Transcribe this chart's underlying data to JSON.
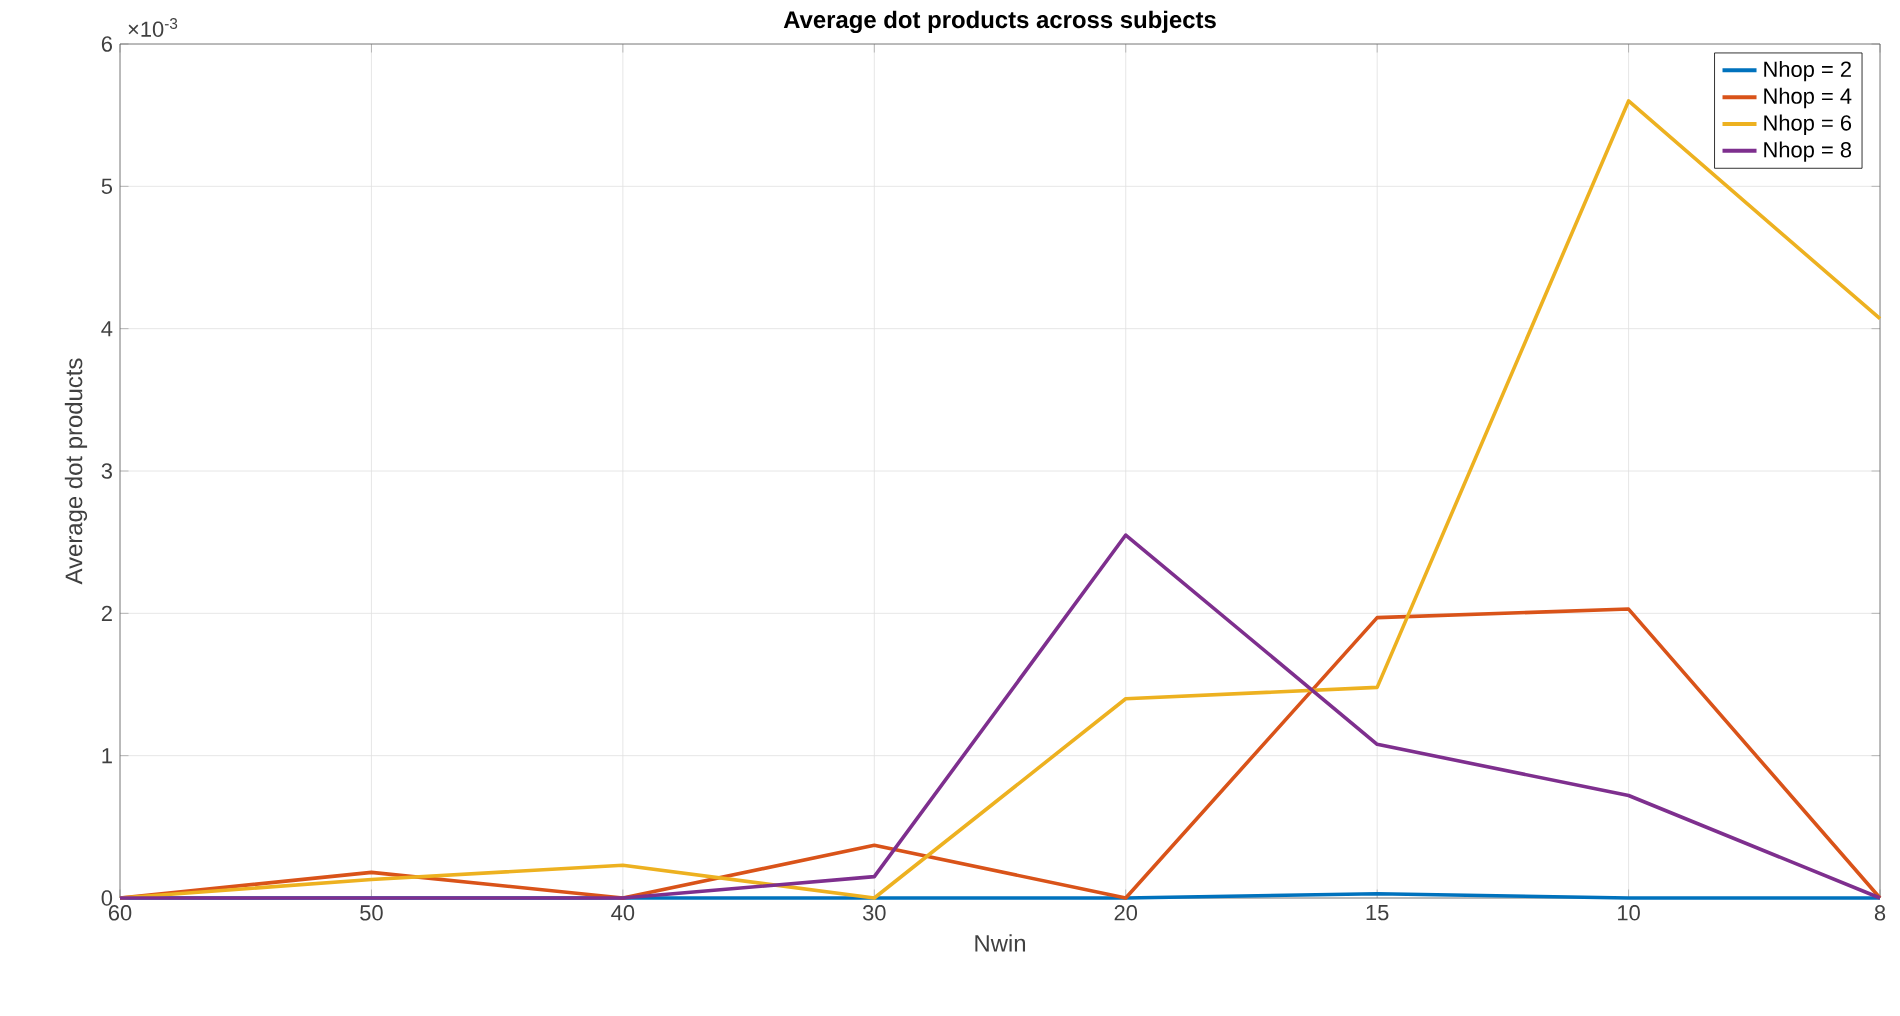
{
  "chart_data": {
    "type": "line",
    "title": "Average dot products across subjects",
    "xlabel": "Nwin",
    "ylabel": "Average dot products",
    "categories": [
      "60",
      "50",
      "40",
      "30",
      "20",
      "15",
      "10",
      "8"
    ],
    "series": [
      {
        "name": "Nhop = 2",
        "color": "#0072bd",
        "values": [
          0,
          0,
          0,
          0,
          0,
          0.03,
          0,
          0
        ]
      },
      {
        "name": "Nhop = 4",
        "color": "#d95319",
        "values": [
          0,
          0.18,
          0,
          0.37,
          0,
          1.97,
          2.03,
          0
        ]
      },
      {
        "name": "Nhop = 6",
        "color": "#edb120",
        "values": [
          0,
          0.13,
          0.23,
          0,
          1.4,
          1.48,
          5.6,
          4.07
        ]
      },
      {
        "name": "Nhop = 8",
        "color": "#7e2f8e",
        "values": [
          0,
          0,
          0,
          0.15,
          2.55,
          1.08,
          0.72,
          0
        ]
      }
    ],
    "ylim": [
      0,
      6
    ],
    "yticks": [
      0,
      1,
      2,
      3,
      4,
      5,
      6
    ],
    "annotations": [
      "×10$^{-3}$"
    ],
    "grid": true,
    "legend": "top right",
    "marker": "none",
    "line_style": "solid"
  }
}
